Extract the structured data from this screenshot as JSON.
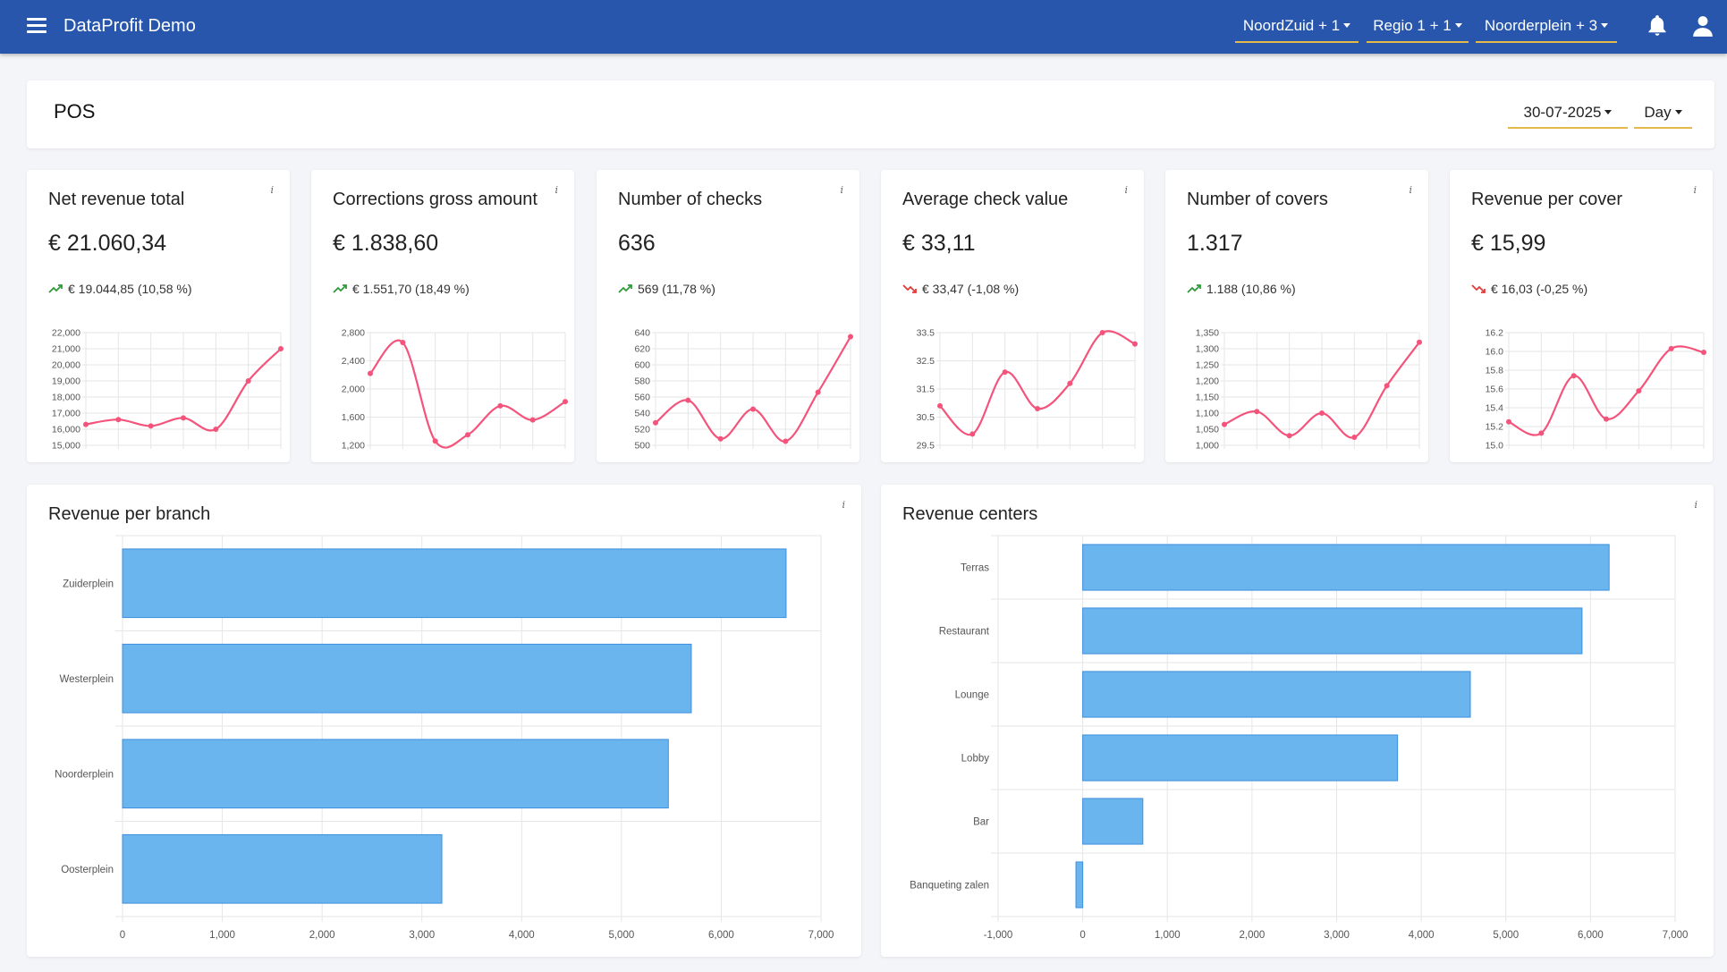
{
  "header": {
    "title": "DataProfit Demo",
    "filters": [
      {
        "label": "NoordZuid + 1"
      },
      {
        "label": "Regio 1 + 1"
      },
      {
        "label": "Noorderplein + 3"
      }
    ]
  },
  "page": {
    "title": "POS",
    "date": "30-07-2025",
    "period": "Day"
  },
  "info_symbol": "i",
  "colors": {
    "topbar": "#2756ac",
    "accent_underline": "#e4b94a",
    "spark_line": "#f4547b",
    "bar_fill": "#6bb5ee",
    "bar_border": "#3d8fde",
    "trend_up": "#2e9a3a",
    "trend_down": "#e03a3a"
  },
  "kpis": [
    {
      "title": "Net revenue total",
      "value": "€ 21.060,34",
      "trend": "up",
      "comparison": "€ 19.044,85 (10,58 %)",
      "y_ticks": [
        "22,000",
        "21,000",
        "20,000",
        "19,000",
        "18,000",
        "17,000",
        "16,000",
        "15,000"
      ],
      "ymin": 15000,
      "ymax": 22000,
      "points": [
        16300,
        16600,
        16200,
        16700,
        16000,
        19000,
        21000
      ]
    },
    {
      "title": "Corrections gross amount",
      "value": "€ 1.838,60",
      "trend": "up",
      "comparison": "€ 1.551,70 (18,49 %)",
      "y_ticks": [
        "2,800",
        "2,400",
        "2,000",
        "1,600",
        "1,200"
      ],
      "ymin": 1200,
      "ymax": 2800,
      "points": [
        2220,
        2660,
        1260,
        1350,
        1760,
        1560,
        1820
      ]
    },
    {
      "title": "Number of checks",
      "value": "636",
      "trend": "up",
      "comparison": "569 (11,78 %)",
      "y_ticks": [
        "640",
        "620",
        "600",
        "580",
        "560",
        "540",
        "520",
        "500"
      ],
      "ymin": 500,
      "ymax": 640,
      "points": [
        528,
        556,
        508,
        545,
        505,
        566,
        635
      ]
    },
    {
      "title": "Average check value",
      "value": "€ 33,11",
      "trend": "down",
      "comparison": "€ 33,47 (-1,08 %)",
      "y_ticks": [
        "33.5",
        "32.5",
        "31.5",
        "30.5",
        "29.5"
      ],
      "ymin": 29.5,
      "ymax": 33.5,
      "points": [
        30.9,
        29.9,
        32.1,
        30.8,
        31.7,
        33.5,
        33.1
      ]
    },
    {
      "title": "Number of covers",
      "value": "1.317",
      "trend": "up",
      "comparison": "1.188 (10,86 %)",
      "y_ticks": [
        "1,350",
        "1,300",
        "1,250",
        "1,200",
        "1,150",
        "1,100",
        "1,050",
        "1,000"
      ],
      "ymin": 1000,
      "ymax": 1350,
      "points": [
        1065,
        1105,
        1030,
        1100,
        1025,
        1185,
        1320
      ]
    },
    {
      "title": "Revenue per cover",
      "value": "€ 15,99",
      "trend": "down",
      "comparison": "€ 16,03 (-0,25 %)",
      "y_ticks": [
        "16.2",
        "16.0",
        "15.8",
        "15.6",
        "15.4",
        "15.2",
        "15.0"
      ],
      "ymin": 15.0,
      "ymax": 16.2,
      "points": [
        15.25,
        15.13,
        15.74,
        15.28,
        15.58,
        16.03,
        15.99
      ]
    }
  ],
  "chart_data": [
    {
      "type": "bar",
      "title": "Revenue per branch",
      "orientation": "horizontal",
      "categories": [
        "Zuiderplein",
        "Westerplein",
        "Noorderplein",
        "Oosterplein"
      ],
      "values": [
        6650,
        5700,
        5470,
        3200
      ],
      "xlim": [
        0,
        7000
      ],
      "x_ticks": [
        "0",
        "1,000",
        "2,000",
        "3,000",
        "4,000",
        "5,000",
        "6,000",
        "7,000"
      ]
    },
    {
      "type": "bar",
      "title": "Revenue centers",
      "orientation": "horizontal",
      "categories": [
        "Terras",
        "Restaurant",
        "Lounge",
        "Lobby",
        "Bar",
        "Banqueting zalen"
      ],
      "values": [
        6220,
        5900,
        4580,
        3720,
        710,
        -80
      ],
      "xlim": [
        -1000,
        7000
      ],
      "x_ticks": [
        "-1,000",
        "0",
        "1,000",
        "2,000",
        "3,000",
        "4,000",
        "5,000",
        "6,000",
        "7,000"
      ]
    }
  ]
}
